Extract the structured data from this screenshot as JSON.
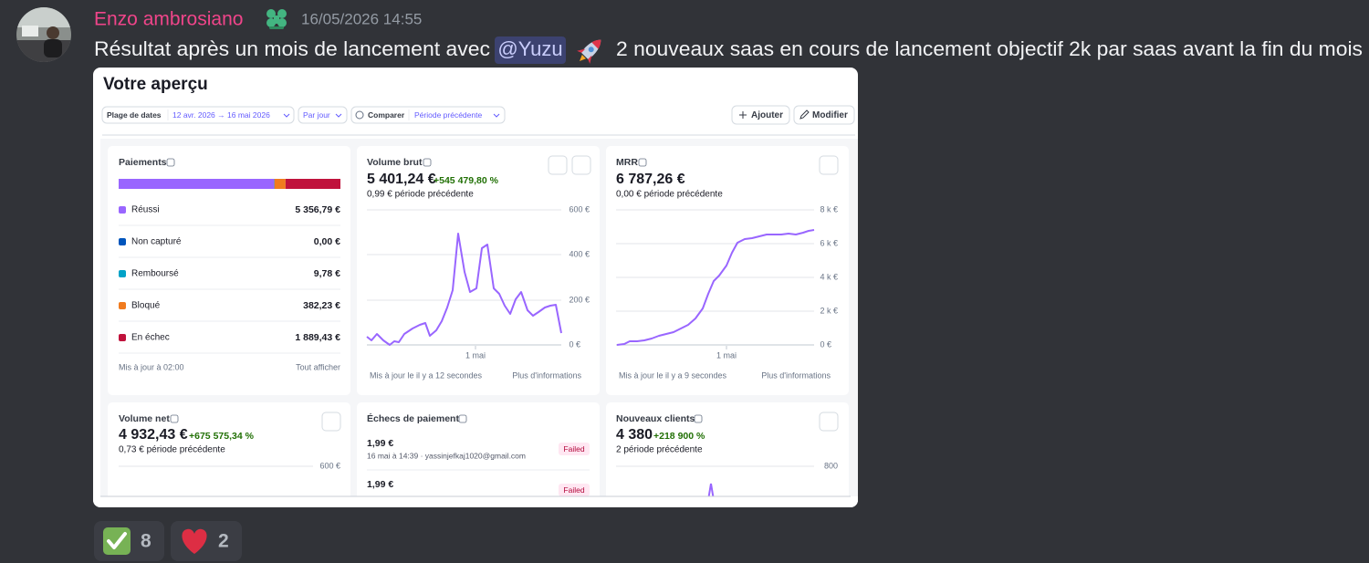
{
  "message": {
    "author": "Enzo ambrosiano",
    "timestamp": "16/05/2026 14:55",
    "text_before": "Résultat après un mois de lancement avec",
    "mention": "@Yuzu",
    "text_after": "2 nouveaux saas en cours de lancement objectif 2k par saas avant la fin du mois"
  },
  "dashboard": {
    "title": "Votre aperçu",
    "filters": {
      "date_label": "Plage de dates",
      "date_range": "12 avr. 2026 → 16 mai 2026",
      "interval": "Par jour",
      "compare_label": "Comparer",
      "compare_value": "Période précédente"
    },
    "buttons": [
      "Ajouter",
      "Modifier"
    ],
    "payments": {
      "title": "Paiements",
      "rows": [
        {
          "name": "Réussi",
          "value": 5356.79,
          "label": "5 356,79 €",
          "color": "#9966ff"
        },
        {
          "name": "Non capturé",
          "value": 0,
          "label": "0,00 €",
          "color": "#0055bc"
        },
        {
          "name": "Remboursé",
          "value": 9.78,
          "label": "9,78 €",
          "color": "#00a2c7"
        },
        {
          "name": "Bloqué",
          "value": 382.23,
          "label": "382,23 €",
          "color": "#f07b1f"
        },
        {
          "name": "En échec",
          "value": 1889.43,
          "label": "1 889,43 €",
          "color": "#c0123c"
        }
      ],
      "updated": "Mis à jour à 02:00",
      "link": "Tout afficher"
    },
    "gross_volume": {
      "title": "Volume brut",
      "value": "5 401,24 €",
      "change": "+545 479,80 %",
      "previous": "0,99 € période précédente",
      "yticks": [
        "600 €",
        "400 €",
        "200 €",
        "0 €"
      ],
      "xlabel": "1 mai",
      "updated": "Mis à jour le il y a 12 secondes",
      "link": "Plus d'informations"
    },
    "mrr": {
      "title": "MRR",
      "value": "6 787,26 €",
      "previous": "0,00 € période précédente",
      "yticks": [
        "8 k €",
        "6 k €",
        "4 k €",
        "2 k €",
        "0 €"
      ],
      "xlabel": "1 mai",
      "updated": "Mis à jour le il y a 9 secondes",
      "link": "Plus d'informations"
    },
    "net_volume": {
      "title": "Volume net",
      "value": "4 932,43 €",
      "change": "+675 575,34 %",
      "previous": "0,73 € période précédente",
      "ytick": "600 €"
    },
    "failed_payments": {
      "title": "Échecs de paiement",
      "items": [
        {
          "amount": "1,99 €",
          "detail": "16 mai à 14:39 · yassinjefkaj1020@gmail.com",
          "status": "Failed"
        },
        {
          "amount": "1,99 €",
          "status": "Failed"
        }
      ]
    },
    "new_customers": {
      "title": "Nouveaux clients",
      "value": "4 380",
      "change": "+218 900 %",
      "previous": "2 période précédente",
      "ytick": "800"
    }
  },
  "reactions": [
    {
      "count": 8
    },
    {
      "count": 2
    }
  ]
}
